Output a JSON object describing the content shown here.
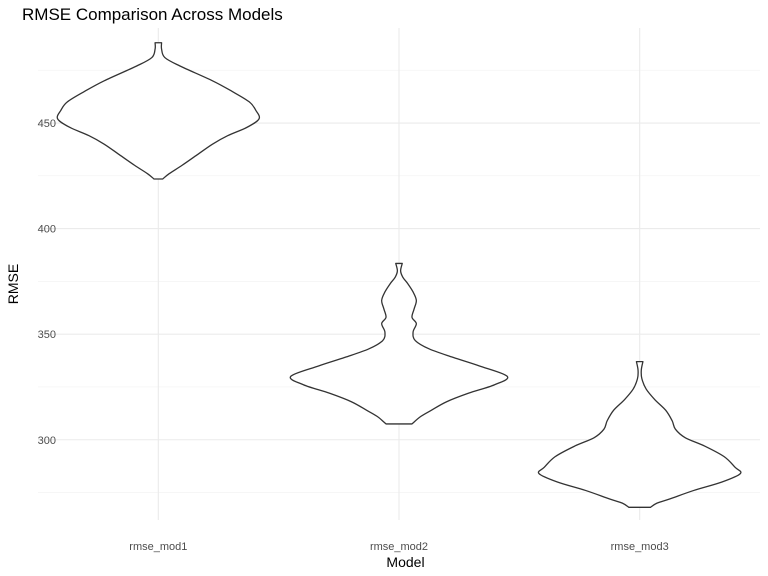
{
  "chart_data": {
    "type": "violin",
    "title": "RMSE Comparison Across Models",
    "xlabel": "Model",
    "ylabel": "RMSE",
    "categories": [
      "rmse_mod1",
      "rmse_mod2",
      "rmse_mod3"
    ],
    "ylim": [
      262,
      495
    ],
    "yticks": [
      300,
      350,
      400,
      450
    ],
    "grid": true,
    "legend": "none",
    "colors": {
      "outline": "#333333",
      "fill": "#ffffff",
      "grid": "#ebebeb",
      "text": "#4d4d4d"
    },
    "series": [
      {
        "category": "rmse_mod1",
        "min": 423.5,
        "max": 488,
        "profile": [
          [
            488,
            0.03
          ],
          [
            485,
            0.03
          ],
          [
            481,
            0.06
          ],
          [
            477,
            0.2
          ],
          [
            470,
            0.5
          ],
          [
            465,
            0.68
          ],
          [
            460,
            0.84
          ],
          [
            456,
            0.9
          ],
          [
            452,
            0.93
          ],
          [
            448,
            0.82
          ],
          [
            444,
            0.64
          ],
          [
            440,
            0.5
          ],
          [
            435,
            0.36
          ],
          [
            430,
            0.22
          ],
          [
            426,
            0.1
          ],
          [
            423.5,
            0.04
          ]
        ]
      },
      {
        "category": "rmse_mod2",
        "min": 307.5,
        "max": 383.5,
        "profile": [
          [
            383.5,
            0.03
          ],
          [
            380,
            0.015
          ],
          [
            377,
            0.035
          ],
          [
            374,
            0.08
          ],
          [
            370,
            0.13
          ],
          [
            366,
            0.16
          ],
          [
            362,
            0.14
          ],
          [
            358,
            0.12
          ],
          [
            355,
            0.16
          ],
          [
            351,
            0.13
          ],
          [
            347,
            0.15
          ],
          [
            343,
            0.28
          ],
          [
            339,
            0.5
          ],
          [
            335,
            0.74
          ],
          [
            330,
            1.0
          ],
          [
            326,
            0.88
          ],
          [
            322,
            0.64
          ],
          [
            318,
            0.44
          ],
          [
            314,
            0.3
          ],
          [
            311,
            0.2
          ],
          [
            307.5,
            0.12
          ]
        ]
      },
      {
        "category": "rmse_mod3",
        "min": 268,
        "max": 337,
        "profile": [
          [
            337,
            0.03
          ],
          [
            333,
            0.015
          ],
          [
            329,
            0.02
          ],
          [
            324,
            0.06
          ],
          [
            319,
            0.14
          ],
          [
            314,
            0.24
          ],
          [
            309,
            0.3
          ],
          [
            305,
            0.33
          ],
          [
            301,
            0.42
          ],
          [
            297,
            0.6
          ],
          [
            292,
            0.78
          ],
          [
            287,
            0.88
          ],
          [
            284,
            0.93
          ],
          [
            280,
            0.76
          ],
          [
            276,
            0.5
          ],
          [
            272,
            0.28
          ],
          [
            270,
            0.16
          ],
          [
            268,
            0.1
          ]
        ]
      }
    ]
  }
}
